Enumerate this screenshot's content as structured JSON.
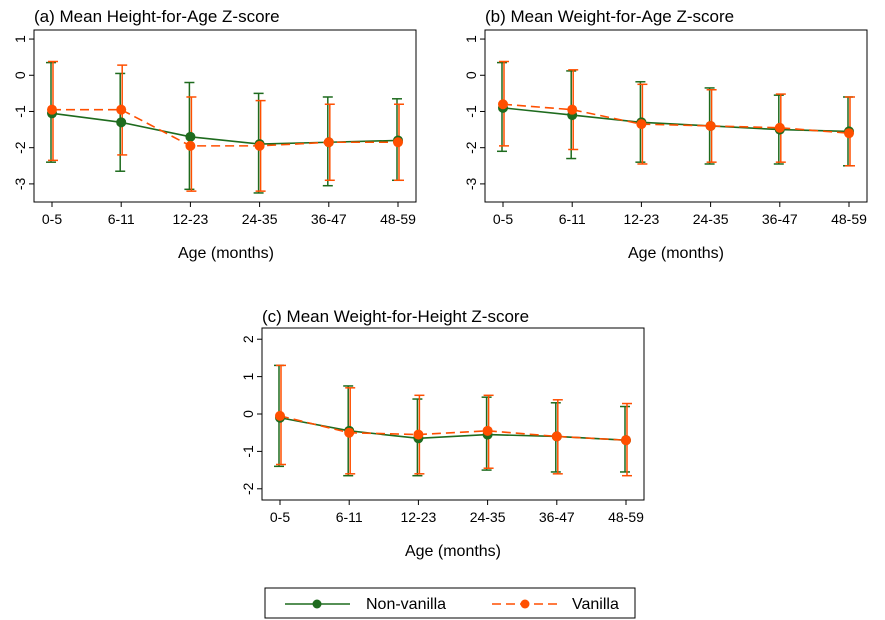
{
  "legend": {
    "nonvanilla_label": "Non-vanilla",
    "vanilla_label": "Vanilla"
  },
  "colors": {
    "nonvanilla": "#1e6b1e",
    "vanilla": "#ff4f00"
  },
  "chart_data": [
    {
      "type": "line",
      "title": "(a) Mean Height-for-Age Z-score",
      "xlabel": "Age (months)",
      "ylabel": "",
      "categories": [
        "0-5",
        "6-11",
        "12-23",
        "24-35",
        "36-47",
        "48-59"
      ],
      "ylim": [
        -3.5,
        1.25
      ],
      "yticks": [
        1,
        0,
        -1,
        -2,
        -3
      ],
      "series": [
        {
          "name": "Non-vanilla",
          "values": [
            -1.05,
            -1.3,
            -1.7,
            -1.9,
            -1.85,
            -1.8
          ],
          "lower": [
            -2.4,
            -2.65,
            -3.15,
            -3.25,
            -3.05,
            -2.9
          ],
          "upper": [
            0.35,
            0.05,
            -0.2,
            -0.5,
            -0.6,
            -0.65
          ]
        },
        {
          "name": "Vanilla",
          "values": [
            -0.95,
            -0.95,
            -1.95,
            -1.95,
            -1.85,
            -1.85
          ],
          "lower": [
            -2.35,
            -2.2,
            -3.2,
            -3.2,
            -2.9,
            -2.9
          ],
          "upper": [
            0.38,
            0.28,
            -0.6,
            -0.7,
            -0.8,
            -0.8
          ]
        }
      ],
      "grid": false,
      "legend_position": "bottom"
    },
    {
      "type": "line",
      "title": "(b) Mean Weight-for-Age Z-score",
      "xlabel": "Age (months)",
      "ylabel": "",
      "categories": [
        "0-5",
        "6-11",
        "12-23",
        "24-35",
        "36-47",
        "48-59"
      ],
      "ylim": [
        -3.5,
        1.25
      ],
      "yticks": [
        1,
        0,
        -1,
        -2,
        -3
      ],
      "series": [
        {
          "name": "Non-vanilla",
          "values": [
            -0.9,
            -1.1,
            -1.3,
            -1.4,
            -1.5,
            -1.55
          ],
          "lower": [
            -2.1,
            -2.3,
            -2.4,
            -2.45,
            -2.45,
            -2.5
          ],
          "upper": [
            0.35,
            0.12,
            -0.18,
            -0.35,
            -0.55,
            -0.6
          ]
        },
        {
          "name": "Vanilla",
          "values": [
            -0.8,
            -0.95,
            -1.35,
            -1.4,
            -1.45,
            -1.6
          ],
          "lower": [
            -1.95,
            -2.05,
            -2.45,
            -2.4,
            -2.4,
            -2.5
          ],
          "upper": [
            0.38,
            0.15,
            -0.25,
            -0.4,
            -0.52,
            -0.6
          ]
        }
      ],
      "grid": false,
      "legend_position": "bottom"
    },
    {
      "type": "line",
      "title": "(c) Mean Weight-for-Height Z-score",
      "xlabel": "Age (months)",
      "ylabel": "",
      "categories": [
        "0-5",
        "6-11",
        "12-23",
        "24-35",
        "36-47",
        "48-59"
      ],
      "ylim": [
        -2.3,
        2.3
      ],
      "yticks": [
        2,
        1,
        0,
        -1,
        -2
      ],
      "series": [
        {
          "name": "Non-vanilla",
          "values": [
            -0.1,
            -0.45,
            -0.65,
            -0.55,
            -0.6,
            -0.7
          ],
          "lower": [
            -1.4,
            -1.65,
            -1.65,
            -1.5,
            -1.55,
            -1.55
          ],
          "upper": [
            1.3,
            0.75,
            0.4,
            0.45,
            0.3,
            0.2
          ]
        },
        {
          "name": "Vanilla",
          "values": [
            -0.05,
            -0.5,
            -0.55,
            -0.45,
            -0.6,
            -0.7
          ],
          "lower": [
            -1.35,
            -1.6,
            -1.6,
            -1.45,
            -1.6,
            -1.65
          ],
          "upper": [
            1.3,
            0.7,
            0.5,
            0.5,
            0.38,
            0.28
          ]
        }
      ],
      "grid": false,
      "legend_position": "bottom"
    }
  ]
}
